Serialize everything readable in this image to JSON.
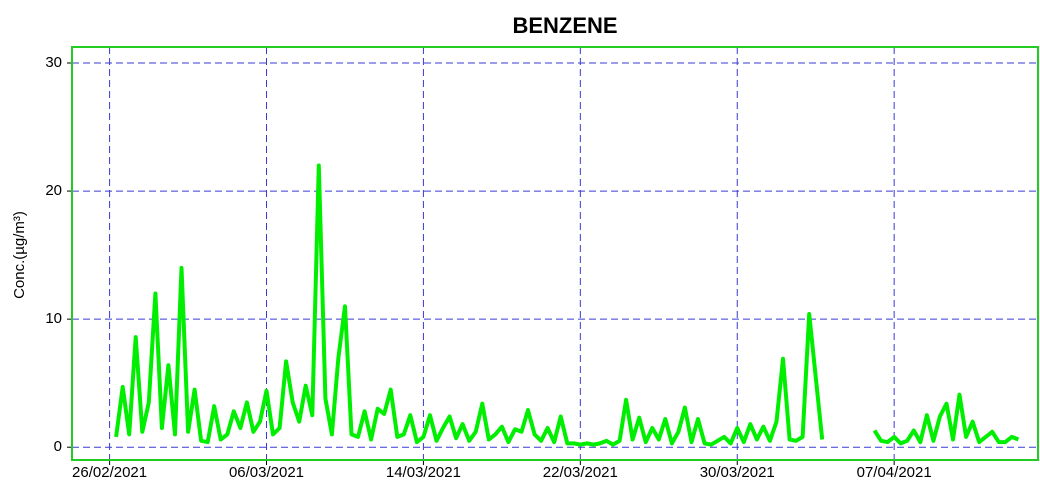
{
  "chart_data": {
    "type": "line",
    "title": "BENZENE",
    "y_label": "Conc.(µg/m³)",
    "x": [
      "26/02/2021 08:00",
      "26/02/2021 16:00",
      "27/02/2021 00:00",
      "27/02/2021 08:00",
      "27/02/2021 16:00",
      "28/02/2021 00:00",
      "28/02/2021 08:00",
      "28/02/2021 16:00",
      "01/03/2021 00:00",
      "01/03/2021 08:00",
      "01/03/2021 16:00",
      "02/03/2021 00:00",
      "02/03/2021 08:00",
      "02/03/2021 16:00",
      "03/03/2021 00:00",
      "03/03/2021 08:00",
      "03/03/2021 16:00",
      "04/03/2021 00:00",
      "04/03/2021 08:00",
      "04/03/2021 16:00",
      "05/03/2021 00:00",
      "05/03/2021 08:00",
      "05/03/2021 16:00",
      "06/03/2021 00:00",
      "06/03/2021 08:00",
      "06/03/2021 16:00",
      "07/03/2021 00:00",
      "07/03/2021 08:00",
      "07/03/2021 16:00",
      "08/03/2021 00:00",
      "08/03/2021 08:00",
      "08/03/2021 16:00",
      "09/03/2021 00:00",
      "09/03/2021 08:00",
      "09/03/2021 16:00",
      "10/03/2021 00:00",
      "10/03/2021 08:00",
      "10/03/2021 16:00",
      "11/03/2021 00:00",
      "11/03/2021 08:00",
      "11/03/2021 16:00",
      "12/03/2021 00:00",
      "12/03/2021 08:00",
      "12/03/2021 16:00",
      "13/03/2021 00:00",
      "13/03/2021 08:00",
      "13/03/2021 16:00",
      "14/03/2021 00:00",
      "14/03/2021 08:00",
      "14/03/2021 16:00",
      "15/03/2021 00:00",
      "15/03/2021 08:00",
      "15/03/2021 16:00",
      "16/03/2021 00:00",
      "16/03/2021 08:00",
      "16/03/2021 16:00",
      "17/03/2021 00:00",
      "17/03/2021 08:00",
      "17/03/2021 16:00",
      "18/03/2021 00:00",
      "18/03/2021 08:00",
      "18/03/2021 16:00",
      "19/03/2021 00:00",
      "19/03/2021 08:00",
      "19/03/2021 16:00",
      "20/03/2021 00:00",
      "20/03/2021 08:00",
      "20/03/2021 16:00",
      "21/03/2021 00:00",
      "21/03/2021 08:00",
      "21/03/2021 16:00",
      "22/03/2021 00:00",
      "22/03/2021 08:00",
      "22/03/2021 16:00",
      "23/03/2021 00:00",
      "23/03/2021 08:00",
      "23/03/2021 16:00",
      "24/03/2021 00:00",
      "24/03/2021 08:00",
      "24/03/2021 16:00",
      "25/03/2021 00:00",
      "25/03/2021 08:00",
      "25/03/2021 16:00",
      "26/03/2021 00:00",
      "26/03/2021 08:00",
      "26/03/2021 16:00",
      "27/03/2021 00:00",
      "27/03/2021 08:00",
      "27/03/2021 16:00",
      "28/03/2021 00:00",
      "28/03/2021 08:00",
      "28/03/2021 16:00",
      "29/03/2021 00:00",
      "29/03/2021 08:00",
      "29/03/2021 16:00",
      "30/03/2021 00:00",
      "30/03/2021 08:00",
      "30/03/2021 16:00",
      "31/03/2021 00:00",
      "31/03/2021 08:00",
      "31/03/2021 16:00",
      "01/04/2021 00:00",
      "01/04/2021 08:00",
      "01/04/2021 16:00",
      "02/04/2021 00:00",
      "02/04/2021 08:00",
      "02/04/2021 16:00",
      "03/04/2021 08:00",
      "04/04/2021 00:00",
      "06/04/2021 00:00",
      "06/04/2021 08:00",
      "06/04/2021 16:00",
      "07/04/2021 00:00",
      "07/04/2021 08:00",
      "07/04/2021 16:00",
      "08/04/2021 00:00",
      "08/04/2021 08:00",
      "08/04/2021 16:00",
      "09/04/2021 00:00",
      "09/04/2021 08:00",
      "09/04/2021 16:00",
      "10/04/2021 00:00",
      "10/04/2021 08:00",
      "10/04/2021 16:00",
      "11/04/2021 00:00",
      "11/04/2021 08:00",
      "11/04/2021 16:00",
      "12/04/2021 00:00",
      "12/04/2021 08:00",
      "12/04/2021 16:00",
      "13/04/2021 00:00",
      "13/04/2021 08:00"
    ],
    "values": [
      0.8,
      4.7,
      1.0,
      8.6,
      1.2,
      3.5,
      12.0,
      1.5,
      6.4,
      1.0,
      14.0,
      1.2,
      4.5,
      0.5,
      0.4,
      3.2,
      0.6,
      1.0,
      2.8,
      1.5,
      3.5,
      1.2,
      2.0,
      4.4,
      1.0,
      1.5,
      6.7,
      3.5,
      2.0,
      4.8,
      2.5,
      22.0,
      3.8,
      1.0,
      7.0,
      11.0,
      1.0,
      0.8,
      2.8,
      0.6,
      3.0,
      2.6,
      4.5,
      0.8,
      1.0,
      2.5,
      0.4,
      0.8,
      2.5,
      0.5,
      1.5,
      2.4,
      0.7,
      1.8,
      0.5,
      1.2,
      3.4,
      0.6,
      1.0,
      1.6,
      0.4,
      1.4,
      1.2,
      2.9,
      1.0,
      0.5,
      1.5,
      0.4,
      2.4,
      0.3,
      0.3,
      0.2,
      0.3,
      0.2,
      0.3,
      0.5,
      0.2,
      0.5,
      3.7,
      0.6,
      2.3,
      0.4,
      1.5,
      0.6,
      2.2,
      0.3,
      1.2,
      3.1,
      0.4,
      2.2,
      0.3,
      0.2,
      0.5,
      0.8,
      0.3,
      1.5,
      0.4,
      1.8,
      0.6,
      1.6,
      0.5,
      2.0,
      6.9,
      0.6,
      0.5,
      0.8,
      10.4,
      0.6,
      null,
      1.3,
      0.5,
      0.4,
      0.8,
      0.3,
      0.5,
      1.3,
      0.4,
      2.5,
      0.5,
      2.4,
      3.4,
      0.6,
      4.1,
      0.8,
      2.0,
      0.4,
      0.8,
      1.2,
      0.4,
      0.4,
      0.8,
      0.6
    ],
    "color": "#00ee00",
    "xlim": [
      "24/02/2021 02:00",
      "14/04/2021 08:00"
    ],
    "xticks": [
      "26/02/2021",
      "06/03/2021",
      "14/03/2021",
      "22/03/2021",
      "30/03/2021",
      "07/04/2021"
    ],
    "ylim": [
      -1,
      31.25
    ],
    "yticks": [
      0,
      10,
      20,
      30
    ],
    "grid": true,
    "frame_color": "#22cc22"
  }
}
